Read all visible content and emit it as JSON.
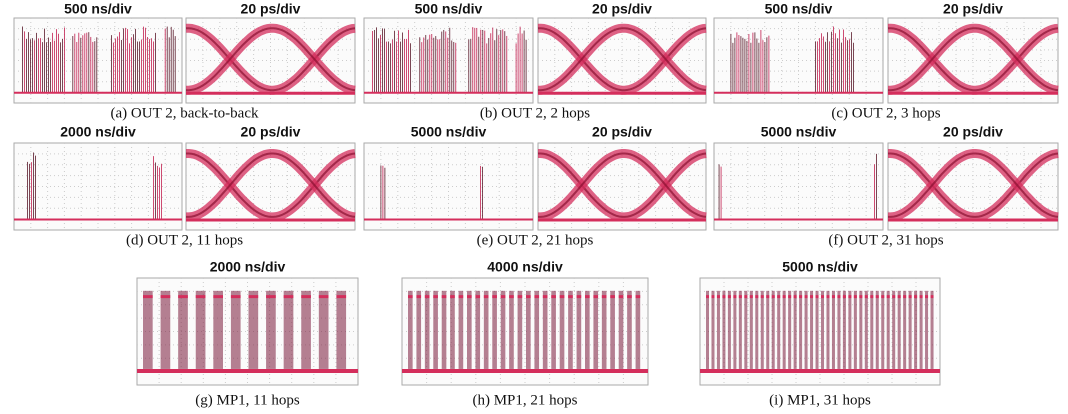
{
  "panels": [
    {
      "caption": "(a) OUT 2, back-to-back",
      "scopes": [
        "500 ns/div",
        "20 ps/div"
      ]
    },
    {
      "caption": "(b) OUT 2, 2 hops",
      "scopes": [
        "500 ns/div",
        "20 ps/div"
      ]
    },
    {
      "caption": "(c) OUT 2, 3 hops",
      "scopes": [
        "500 ns/div",
        "20 ps/div"
      ]
    },
    {
      "caption": "(d) OUT 2, 11 hops",
      "scopes": [
        "2000 ns/div",
        "20 ps/div"
      ]
    },
    {
      "caption": "(e) OUT 2, 21 hops",
      "scopes": [
        "5000 ns/div",
        "20 ps/div"
      ]
    },
    {
      "caption": "(f) OUT 2, 31 hops",
      "scopes": [
        "5000 ns/div",
        "20 ps/div"
      ]
    },
    {
      "caption": "(g) MP1, 11 hops",
      "scopes": [
        "2000 ns/div"
      ]
    },
    {
      "caption": "(h) MP1, 21 hops",
      "scopes": [
        "4000 ns/div"
      ]
    },
    {
      "caption": "(i) MP1, 31 hops",
      "scopes": [
        "5000 ns/div"
      ]
    }
  ]
}
